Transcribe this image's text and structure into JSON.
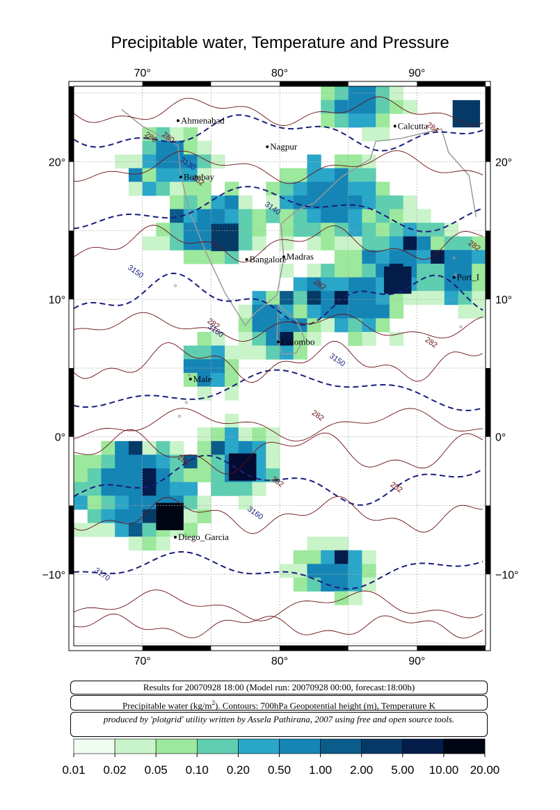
{
  "title": "Precipitable water, Temperature and Pressure",
  "map": {
    "lon_labels": [
      "70°",
      "80°",
      "90°"
    ],
    "lat_labels": [
      "20°",
      "10°",
      "0°",
      "−10°"
    ],
    "cities": [
      {
        "name": "Ahmenabad",
        "lon": 72.6,
        "lat": 23.0
      },
      {
        "name": "Nagpur",
        "lon": 79.1,
        "lat": 21.1
      },
      {
        "name": "Calcutta",
        "lon": 88.4,
        "lat": 22.6
      },
      {
        "name": "Bombay",
        "lon": 72.8,
        "lat": 18.9
      },
      {
        "name": "Bangalore",
        "lon": 77.6,
        "lat": 12.9
      },
      {
        "name": "Madras",
        "lon": 80.3,
        "lat": 13.1
      },
      {
        "name": "Port_Blair",
        "lon": 92.7,
        "lat": 11.6
      },
      {
        "name": "Colombo",
        "lon": 79.9,
        "lat": 6.9
      },
      {
        "name": "Male",
        "lon": 73.5,
        "lat": 4.2
      },
      {
        "name": "Diego_Garcia",
        "lon": 72.4,
        "lat": -7.3
      }
    ],
    "port_blair_label": "Port_I",
    "contour_labels": [
      "280",
      "280",
      "284",
      "3130",
      "282",
      "3140",
      "3150",
      "282",
      "282",
      "282",
      "282",
      "3160",
      "3150",
      "282",
      "282",
      "282",
      "282",
      "3160",
      "3170"
    ]
  },
  "info": {
    "line1": "Results for 20070928 18:00 (Model run: 20070928 00:00, forecast:18:00h)",
    "line2_a": "Precipitable water (kg/m",
    "line2_sup": "2",
    "line2_b": ").  Contours: 700hPa Geopotential height (m), Temperature K",
    "line3": "produced by 'plotgrid' utility written by Assela Pathirana, 2007 using free and open source tools."
  },
  "legend": {
    "ticks": [
      "0.01",
      "0.02",
      "0.05",
      "0.10",
      "0.20",
      "0.50",
      "1.00",
      "2.00",
      "5.00",
      "10.00",
      "20.00"
    ],
    "colors": [
      "#f1fcf1",
      "#c9f3c9",
      "#9ce89c",
      "#5fcdb0",
      "#2aa6c8",
      "#1585b6",
      "#0a5c8a",
      "#063a66",
      "#041c4a",
      "#020c30",
      "#010614"
    ]
  }
}
